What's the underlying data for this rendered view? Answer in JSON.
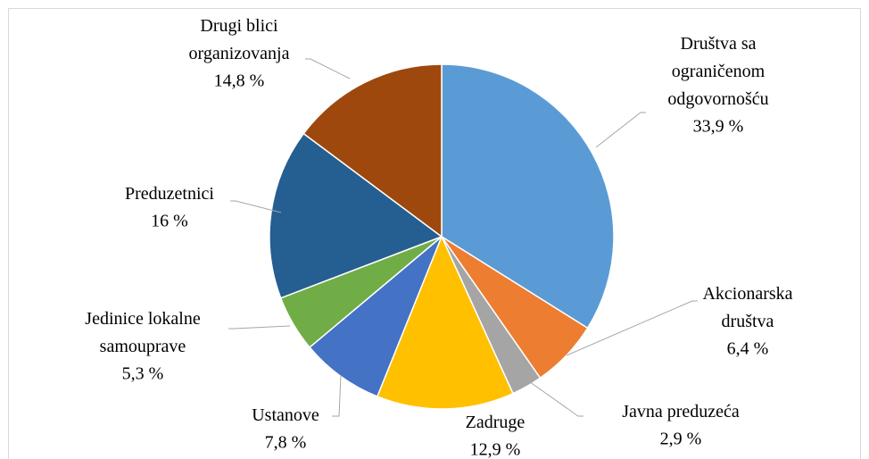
{
  "chart_data": {
    "type": "pie",
    "categories": [
      "Društva sa ograničenom odgovornošću",
      "Akcionarska društva",
      "Javna preduzeća",
      "Zadruge",
      "Ustanove",
      "Jedinice lokalne samouprave",
      "Preduzetnici",
      "Drugi blici organizovanja"
    ],
    "values": [
      33.9,
      6.4,
      2.9,
      12.9,
      7.8,
      5.3,
      16,
      14.8
    ],
    "value_labels": [
      "33,9 %",
      "6,4 %",
      "2,9 %",
      "12,9 %",
      "7,8 %",
      "5,3 %",
      "16 %",
      "14,8 %"
    ],
    "colors": [
      "#5b9bd5",
      "#ed7d31",
      "#a5a5a5",
      "#ffc000",
      "#4472c4",
      "#70ad47",
      "#255e91",
      "#9e480e"
    ]
  }
}
